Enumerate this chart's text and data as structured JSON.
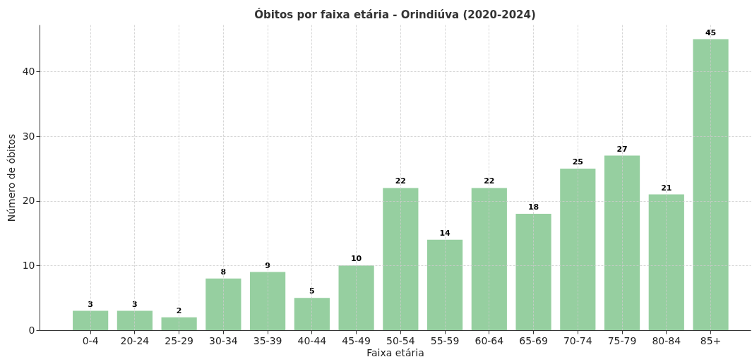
{
  "chart_data": {
    "type": "bar",
    "title": "Óbitos por faixa etária - Orindiúva (2020-2024)",
    "xlabel": "Faixa etária",
    "ylabel": "Número de óbitos",
    "categories": [
      "0-4",
      "20-24",
      "25-29",
      "30-34",
      "35-39",
      "40-44",
      "45-49",
      "50-54",
      "55-59",
      "60-64",
      "65-69",
      "70-74",
      "75-79",
      "80-84",
      "85+"
    ],
    "values": [
      3,
      3,
      2,
      8,
      9,
      5,
      10,
      22,
      14,
      22,
      18,
      25,
      27,
      21,
      45
    ],
    "color": "#96cfa0",
    "ylim": [
      0,
      47.25
    ],
    "yticks": [
      0,
      10,
      20,
      30,
      40
    ],
    "grid": true,
    "data_labels": true
  }
}
